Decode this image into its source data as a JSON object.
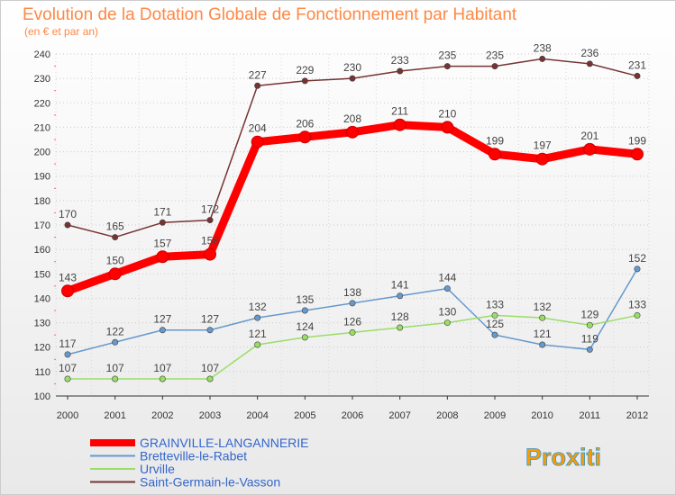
{
  "chart_data": {
    "type": "line",
    "title": "Evolution de la Dotation Globale de Fonctionnement par Habitant",
    "subtitle": "(en € et par an)",
    "x": [
      "2000",
      "2001",
      "2002",
      "2003",
      "2004",
      "2005",
      "2006",
      "2007",
      "2008",
      "2009",
      "2010",
      "2011",
      "2012"
    ],
    "ylim": [
      100,
      240
    ],
    "yticks": [
      100,
      110,
      120,
      130,
      140,
      150,
      160,
      170,
      180,
      190,
      200,
      210,
      220,
      230,
      240
    ],
    "grid": true,
    "legend_position": "bottom-left",
    "series": [
      {
        "name": "GRAINVILLE-LANGANNERIE",
        "color": "#ff0000",
        "emphasis": true,
        "values": [
          143,
          150,
          157,
          158,
          204,
          206,
          208,
          211,
          210,
          199,
          197,
          201,
          199
        ]
      },
      {
        "name": "Bretteville-le-Rabet",
        "color": "#6699cc",
        "values": [
          117,
          122,
          127,
          127,
          132,
          135,
          138,
          141,
          144,
          125,
          121,
          119,
          152
        ]
      },
      {
        "name": "Urville",
        "color": "#99dd66",
        "values": [
          107,
          107,
          107,
          107,
          121,
          124,
          126,
          128,
          130,
          133,
          132,
          129,
          133
        ]
      },
      {
        "name": "Saint-Germain-le-Vasson",
        "color": "#773333",
        "values": [
          170,
          165,
          171,
          172,
          227,
          229,
          230,
          233,
          235,
          235,
          238,
          236,
          231
        ]
      }
    ]
  },
  "branding": {
    "logo_text": "Proxiti"
  }
}
